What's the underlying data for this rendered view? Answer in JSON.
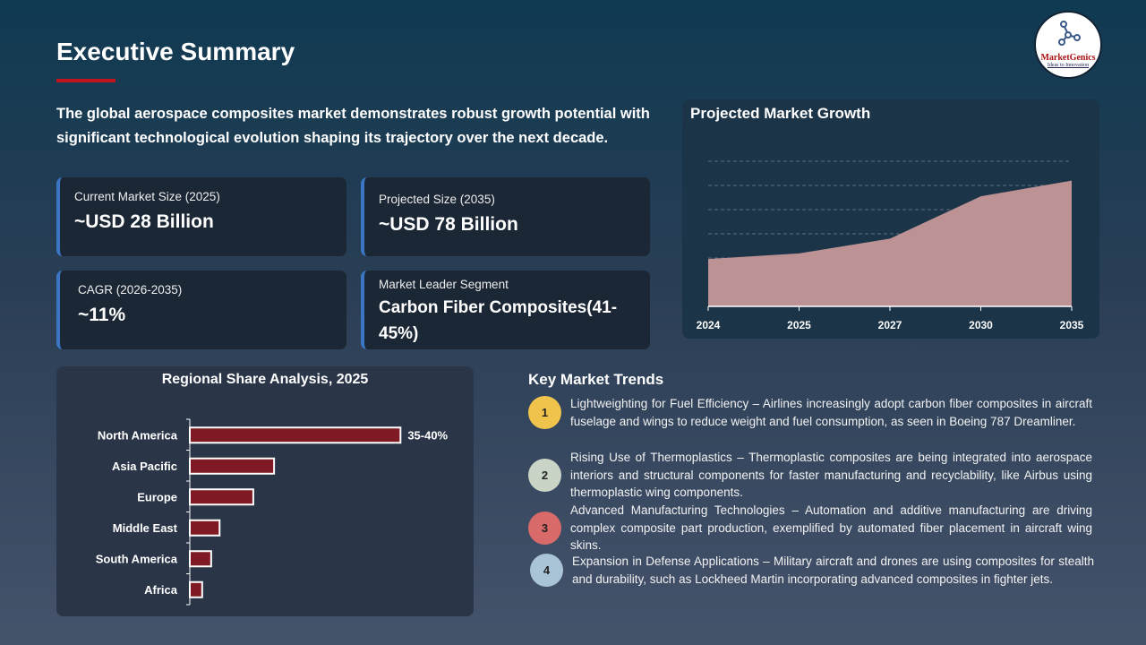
{
  "title": "Executive Summary",
  "intro": "The global aerospace composites market demonstrates robust growth potential with significant technological evolution shaping its trajectory over the next decade.",
  "logo": {
    "name": "MarketGenics",
    "tagline": "Ideas to Innovation"
  },
  "cards": [
    {
      "label": "Current Market Size (2025)",
      "value": "~USD 28 Billion"
    },
    {
      "label": "Projected Size (2035)",
      "value": "~USD 78 Billion"
    },
    {
      "label": "CAGR (2026-2035)",
      "value": "~11%"
    },
    {
      "label": "Market Leader Segment",
      "value": "Carbon  Fiber Composites(41-45%)"
    }
  ],
  "colors": {
    "accent": "#c0141e",
    "card_border": "#3a76c4",
    "area_fill": "#bc9295",
    "bar_fill": "#7f1a24"
  },
  "chart_data": [
    {
      "type": "area",
      "title": "Projected Market Growth",
      "categories": [
        "2024",
        "2025",
        "2027",
        "2030",
        "2035"
      ],
      "values": [
        1.96,
        2.19,
        2.8,
        4.55,
        5.2
      ],
      "ylim": [
        0,
        6
      ],
      "grid": true,
      "xlabel": "",
      "ylabel": ""
    },
    {
      "type": "bar",
      "orientation": "horizontal",
      "title": "Regional Share Analysis, 2025",
      "categories": [
        "North America",
        "Asia Pacific",
        "Europe",
        "Middle East",
        "South America",
        "Africa"
      ],
      "values": [
        37.5,
        15,
        11.3,
        5.3,
        3.8,
        2.2
      ],
      "data_labels": [
        "35-40%",
        "",
        "",
        "",
        "",
        ""
      ],
      "xlim": [
        0,
        40
      ]
    }
  ],
  "trends": {
    "title": "Key Market Trends",
    "items": [
      {
        "num": "1",
        "color": "#f0c44c",
        "text": "Lightweighting for Fuel Efficiency – Airlines increasingly adopt carbon fiber composites in aircraft fuselage and wings to reduce weight and fuel consumption, as seen in Boeing 787 Dreamliner."
      },
      {
        "num": "2",
        "color": "#c9d3c6",
        "text": "Rising Use of Thermoplastics – Thermoplastic composites are being integrated into aerospace interiors and structural components for faster manufacturing and recyclability, like Airbus using thermoplastic wing components."
      },
      {
        "num": "3",
        "color": "#d96a6a",
        "text": "Advanced Manufacturing Technologies – Automation and additive manufacturing are driving complex composite part production, exemplified by automated fiber placement in aircraft wing skins."
      },
      {
        "num": "4",
        "color": "#a9c4d6",
        "text": "Expansion in Defense Applications – Military aircraft and drones are using composites for stealth and durability, such as Lockheed Martin incorporating advanced composites in fighter jets."
      }
    ]
  }
}
